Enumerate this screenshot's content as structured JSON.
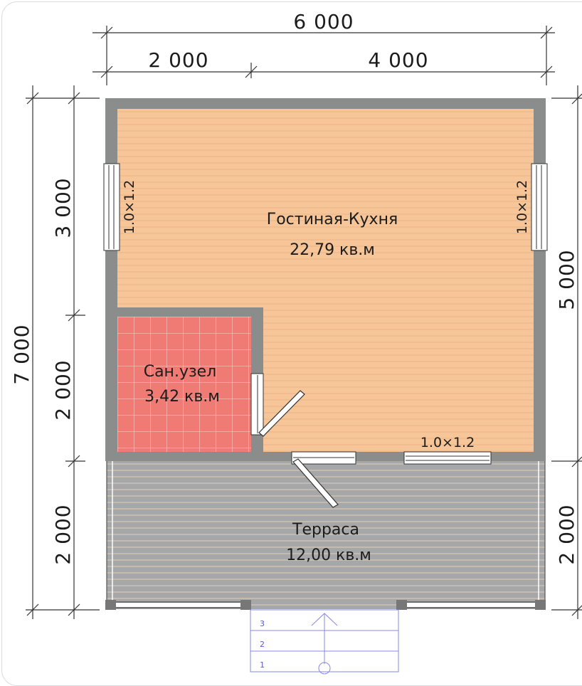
{
  "dimensions": {
    "top_total": "6 000",
    "top_left": "2 000",
    "top_right": "4 000",
    "left_total": "7 000",
    "left_upper": "3 000",
    "left_middle": "2 000",
    "left_lower": "2 000",
    "right_upper": "5 000",
    "right_lower": "2 000"
  },
  "rooms": {
    "living_kitchen": {
      "name": "Гостиная-Кухня",
      "area": "22,79 кв.м"
    },
    "bathroom": {
      "name": "Сан.узел",
      "area": "3,42 кв.м"
    },
    "terrace": {
      "name": "Терраса",
      "area": "12,00 кв.м"
    }
  },
  "windows": {
    "left": "1.0×1.2",
    "right": "1.0×1.2",
    "bottom": "1.0×1.2"
  },
  "stairs": {
    "steps": [
      "3",
      "2",
      "1"
    ]
  },
  "colors": {
    "wall": "#8a8d8c",
    "floor_wood": "#f6c598",
    "tile": "#f07a74",
    "terrace": "#a5a7a8",
    "stair_lines": "#8888e0"
  }
}
